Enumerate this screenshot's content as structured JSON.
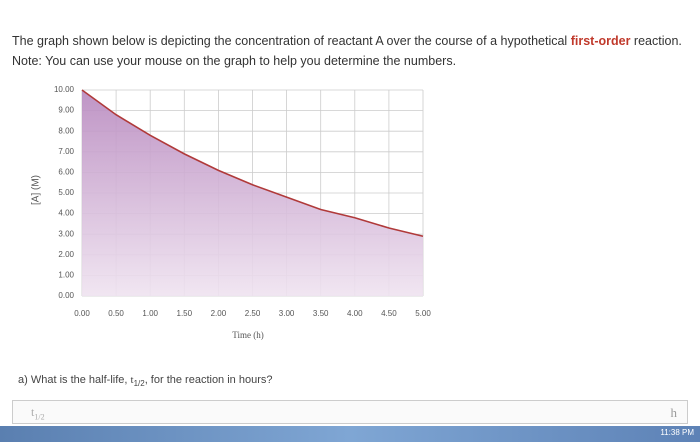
{
  "intro": {
    "before": "The graph shown below is depicting the concentration of reactant A over the course of a hypothetical",
    "highlight": "first-order",
    "after": "reaction."
  },
  "note": "Note: You can use your mouse on the graph to help you determine the numbers.",
  "chart_data": {
    "type": "area",
    "xlabel": "Time (h)",
    "ylabel": "[A] (M)",
    "x": [
      0,
      0.5,
      1,
      1.5,
      2,
      2.5,
      3,
      3.5,
      4,
      4.5,
      5
    ],
    "values": [
      10,
      8.8,
      7.8,
      6.9,
      6.1,
      5.4,
      4.8,
      4.2,
      3.8,
      3.3,
      2.9
    ],
    "color": "#b03a3a",
    "fill": "#c9a6cc",
    "xlim": [
      0,
      5
    ],
    "ylim": [
      0,
      10
    ],
    "xticks": [
      {
        "value": 0,
        "label": "0.00"
      },
      {
        "value": 0.5,
        "label": "0.50"
      },
      {
        "value": 1,
        "label": "1.00"
      },
      {
        "value": 1.5,
        "label": "1.50"
      },
      {
        "value": 2,
        "label": "2.00"
      },
      {
        "value": 2.5,
        "label": "2.50"
      },
      {
        "value": 3,
        "label": "3.00"
      },
      {
        "value": 3.5,
        "label": "3.50"
      },
      {
        "value": 4,
        "label": "4.00"
      },
      {
        "value": 4.5,
        "label": "4.50"
      },
      {
        "value": 5,
        "label": "5.00"
      }
    ],
    "yticks": [
      {
        "value": 0,
        "label": "0.00"
      },
      {
        "value": 1,
        "label": "1.00"
      },
      {
        "value": 2,
        "label": "2.00"
      },
      {
        "value": 3,
        "label": "3.00"
      },
      {
        "value": 4,
        "label": "4.00"
      },
      {
        "value": 5,
        "label": "5.00"
      },
      {
        "value": 6,
        "label": "6.00"
      },
      {
        "value": 7,
        "label": "7.00"
      },
      {
        "value": 8,
        "label": "8.00"
      },
      {
        "value": 9,
        "label": "9.00"
      },
      {
        "value": 10,
        "label": "10.00"
      }
    ],
    "grid": true
  },
  "question": {
    "before": "a) What is the half-life, ",
    "symbol": "t",
    "sub": "1/2",
    "after": ", for the reaction in hours?"
  },
  "answer": {
    "symbol": "t",
    "sub": "1/2",
    "unit": "h"
  },
  "taskbar": {
    "time": "11:38 PM"
  }
}
